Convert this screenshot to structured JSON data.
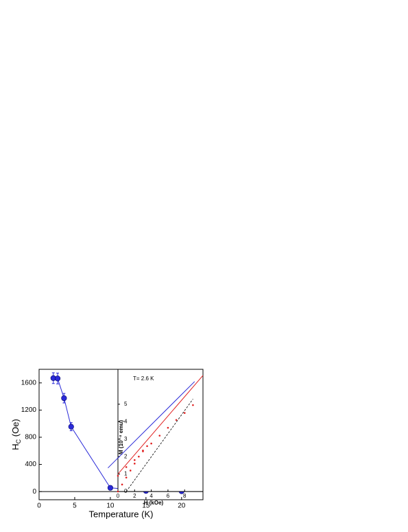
{
  "chart_data": [
    {
      "type": "line",
      "xlabel": "Temperature (K)",
      "ylabel": [
        "H",
        "C",
        " (Oe)"
      ],
      "x": [
        2,
        2.6,
        3.5,
        4.5,
        10,
        15,
        20
      ],
      "series": [
        {
          "color": "#2a2ad8",
          "values": [
            1670,
            1665,
            1375,
            955,
            55,
            10,
            5
          ],
          "errors": [
            80,
            80,
            70,
            60,
            20,
            10,
            10
          ]
        }
      ],
      "xlim": [
        0,
        23
      ],
      "ylim": [
        -120,
        1800
      ],
      "xticks": [
        0,
        5,
        10,
        15,
        20
      ],
      "yticks": [
        0,
        400,
        800,
        1200,
        1600
      ],
      "zero_line": true
    },
    {
      "type": "inset",
      "annotation": "T= 2.6 K",
      "xlabel": "H (kOe)",
      "ylabel": "M (10⁻⁴ emu)",
      "xlim": [
        0,
        10.2
      ],
      "ylim": [
        0,
        7
      ],
      "xticks": [
        0,
        2,
        4,
        6,
        8
      ],
      "yticks": [
        0,
        1,
        2,
        3,
        4,
        5
      ],
      "series": [
        {
          "style": "markers",
          "color": "#e02020",
          "x": [
            0,
            0.5,
            1,
            1.5,
            2,
            2.5,
            3,
            3.5
          ],
          "values": [
            0,
            0.4,
            0.8,
            1.2,
            1.6,
            2,
            2.35,
            2.6
          ]
        },
        {
          "style": "markers",
          "color": "#e02020",
          "x": [
            0,
            1,
            2,
            3,
            4,
            5,
            6,
            7,
            8,
            9
          ],
          "values": [
            0.9,
            1.4,
            1.8,
            2.3,
            2.75,
            3.2,
            3.65,
            4.1,
            4.5,
            4.95
          ]
        },
        {
          "style": "line",
          "color": "#e02020",
          "x": [
            0,
            10.2
          ],
          "values": [
            1.0,
            6.65
          ]
        },
        {
          "style": "line",
          "color": "#2a2ad8",
          "x": [
            -1.2,
            9.2
          ],
          "values": [
            1.35,
            6.3
          ]
        },
        {
          "style": "dashed",
          "color": "#000000",
          "x": [
            1,
            9
          ],
          "values": [
            0,
            5.3
          ]
        }
      ]
    }
  ]
}
